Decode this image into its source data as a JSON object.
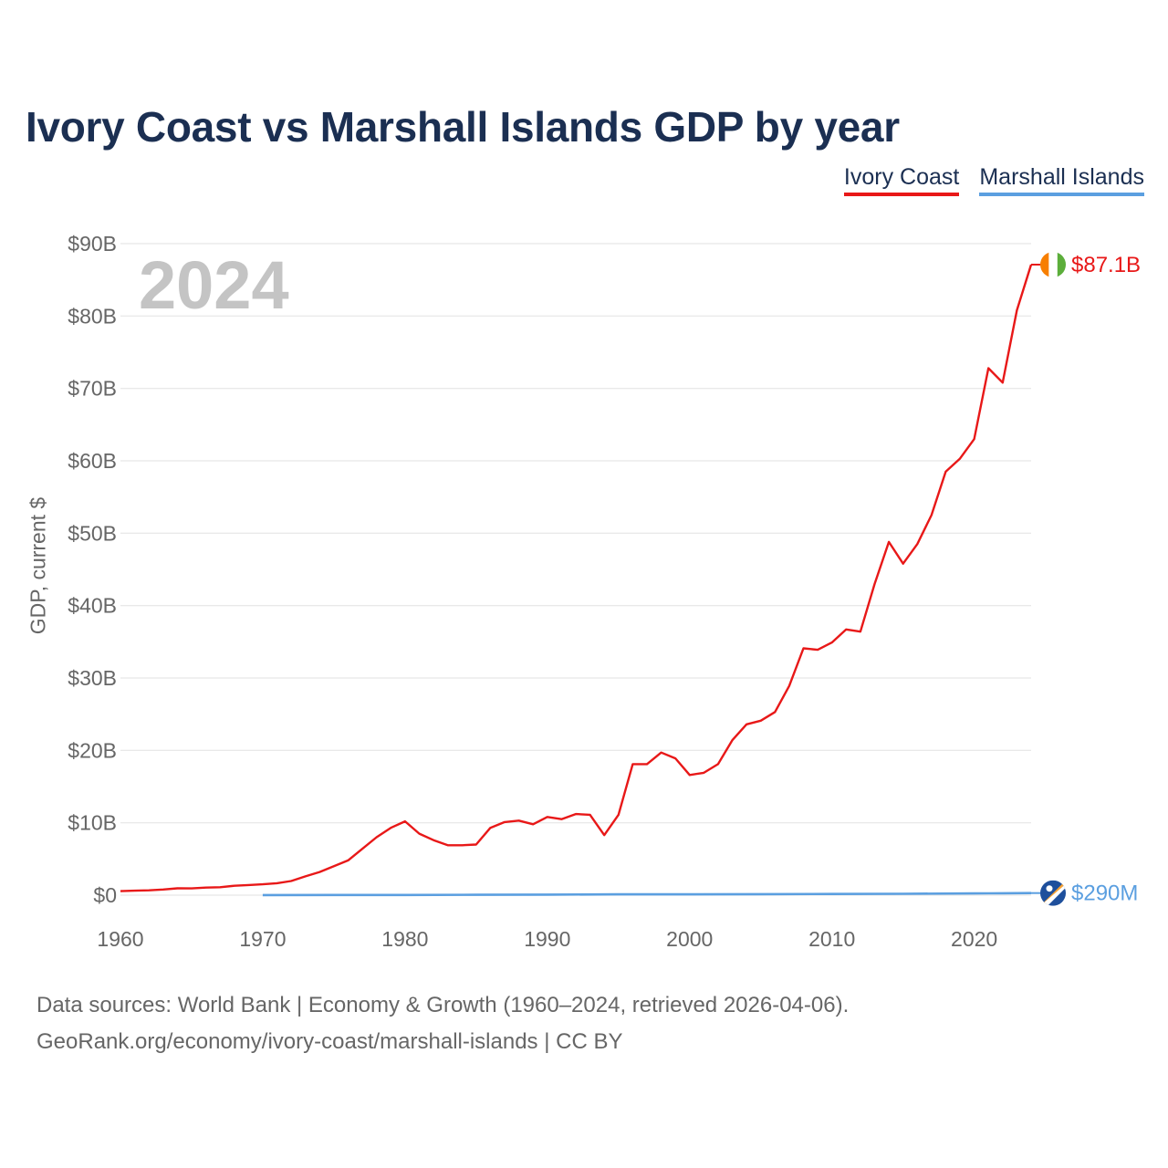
{
  "header": {
    "title": "Ivory Coast vs Marshall Islands GDP by year"
  },
  "legend": {
    "items": [
      "Ivory Coast",
      "Marshall Islands"
    ]
  },
  "colors": {
    "ivory_coast": "#e81818",
    "marshall_islands": "#5b9fe0",
    "grid": "#e6e6e6",
    "axis_text": "#666666",
    "year_watermark": "#c4c4c4"
  },
  "footer": {
    "source_line1": "Data sources: World Bank | Economy & Growth (1960–2024, retrieved 2026-04-06).",
    "source_line2": "GeoRank.org/economy/ivory-coast/marshall-islands | CC BY"
  },
  "chart_data": {
    "type": "line",
    "title": "Ivory Coast vs Marshall Islands GDP by year",
    "xlabel": "",
    "ylabel": "GDP, current $",
    "xlim": [
      1960,
      2024
    ],
    "ylim": [
      0,
      90
    ],
    "y_unit": "billion US$",
    "x_ticks": [
      1960,
      1970,
      1980,
      1990,
      2000,
      2010,
      2020
    ],
    "y_ticks": [
      0,
      10,
      20,
      30,
      40,
      50,
      60,
      70,
      80,
      90
    ],
    "y_tick_labels": [
      "$0",
      "$10B",
      "$20B",
      "$30B",
      "$40B",
      "$50B",
      "$60B",
      "$70B",
      "$80B",
      "$90B"
    ],
    "grid": true,
    "legend_position": "top-right",
    "year_watermark": "2024",
    "series": [
      {
        "name": "Ivory Coast",
        "end_label": "$87.1B",
        "x": [
          1960,
          1961,
          1962,
          1963,
          1964,
          1965,
          1966,
          1967,
          1968,
          1969,
          1970,
          1971,
          1972,
          1973,
          1974,
          1975,
          1976,
          1977,
          1978,
          1979,
          1980,
          1981,
          1982,
          1983,
          1984,
          1985,
          1986,
          1987,
          1988,
          1989,
          1990,
          1991,
          1992,
          1993,
          1994,
          1995,
          1996,
          1997,
          1998,
          1999,
          2000,
          2001,
          2002,
          2003,
          2004,
          2005,
          2006,
          2007,
          2008,
          2009,
          2010,
          2011,
          2012,
          2013,
          2014,
          2015,
          2016,
          2017,
          2018,
          2019,
          2020,
          2021,
          2022,
          2023,
          2024
        ],
        "values": [
          0.55,
          0.62,
          0.67,
          0.78,
          0.95,
          0.93,
          1.05,
          1.1,
          1.3,
          1.4,
          1.5,
          1.65,
          1.95,
          2.6,
          3.2,
          4.0,
          4.8,
          6.4,
          8.0,
          9.3,
          10.2,
          8.5,
          7.6,
          6.9,
          6.9,
          7.0,
          9.3,
          10.1,
          10.3,
          9.8,
          10.8,
          10.5,
          11.2,
          11.1,
          8.3,
          11.1,
          18.1,
          18.1,
          19.7,
          18.9,
          16.6,
          16.9,
          18.1,
          21.4,
          23.6,
          24.1,
          25.3,
          28.9,
          34.1,
          33.9,
          34.9,
          36.7,
          36.4,
          43.0,
          48.8,
          45.8,
          48.5,
          52.5,
          58.5,
          60.3,
          63.0,
          72.8,
          70.8,
          80.8,
          87.1
        ]
      },
      {
        "name": "Marshall Islands",
        "end_label": "$290M",
        "x": [
          1970,
          1975,
          1980,
          1985,
          1990,
          1995,
          2000,
          2005,
          2010,
          2015,
          2020,
          2021,
          2022,
          2023,
          2024
        ],
        "values": [
          0.01,
          0.02,
          0.03,
          0.05,
          0.07,
          0.11,
          0.11,
          0.14,
          0.16,
          0.19,
          0.24,
          0.25,
          0.26,
          0.28,
          0.29
        ]
      }
    ]
  }
}
